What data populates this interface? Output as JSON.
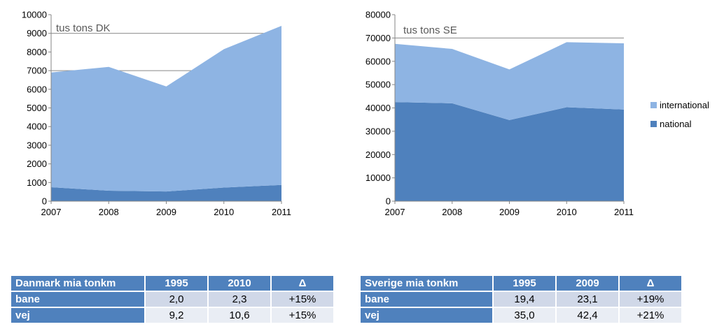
{
  "colors": {
    "international": "#8eb4e3",
    "national": "#4f81bd",
    "header": "#4f81bd",
    "row1": "#d0d8e8",
    "row2": "#e9edf4"
  },
  "chart_data": [
    {
      "type": "area",
      "stacked": true,
      "title": "tus tons DK",
      "x": [
        "2007",
        "2008",
        "2009",
        "2010",
        "2011"
      ],
      "ylim": [
        0,
        10000
      ],
      "yticks": [
        "0",
        "1000",
        "2000",
        "3000",
        "4000",
        "5000",
        "6000",
        "7000",
        "8000",
        "9000",
        "10000"
      ],
      "gridlines": [
        7000,
        9000
      ],
      "series": [
        {
          "name": "national",
          "values": [
            750,
            560,
            520,
            730,
            870
          ]
        },
        {
          "name": "international",
          "values": [
            6150,
            6640,
            5630,
            7420,
            8530
          ]
        }
      ]
    },
    {
      "type": "area",
      "stacked": true,
      "title": "tus tons SE",
      "x": [
        "2007",
        "2008",
        "2009",
        "2010",
        "2011"
      ],
      "ylim": [
        0,
        80000
      ],
      "yticks": [
        "0",
        "10000",
        "20000",
        "30000",
        "40000",
        "50000",
        "60000",
        "70000",
        "80000"
      ],
      "gridlines": [
        70000
      ],
      "legend_position": "right",
      "series": [
        {
          "name": "national",
          "values": [
            42500,
            42000,
            34800,
            40300,
            39300
          ]
        },
        {
          "name": "international",
          "values": [
            25000,
            23300,
            21700,
            27900,
            28400
          ]
        }
      ]
    }
  ],
  "legend": {
    "international": "international",
    "national": "national"
  },
  "tables": {
    "dk": {
      "header": [
        "Danmark mia tonkm",
        "1995",
        "2010",
        "Δ"
      ],
      "rows": [
        [
          "bane",
          "2,0",
          "2,3",
          "+15%"
        ],
        [
          "vej",
          "9,2",
          "10,6",
          "+15%"
        ]
      ]
    },
    "se": {
      "header": [
        "Sverige mia tonkm",
        "1995",
        "2009",
        "Δ"
      ],
      "rows": [
        [
          "bane",
          "19,4",
          "23,1",
          "+19%"
        ],
        [
          "vej",
          "35,0",
          "42,4",
          "+21%"
        ]
      ]
    }
  }
}
